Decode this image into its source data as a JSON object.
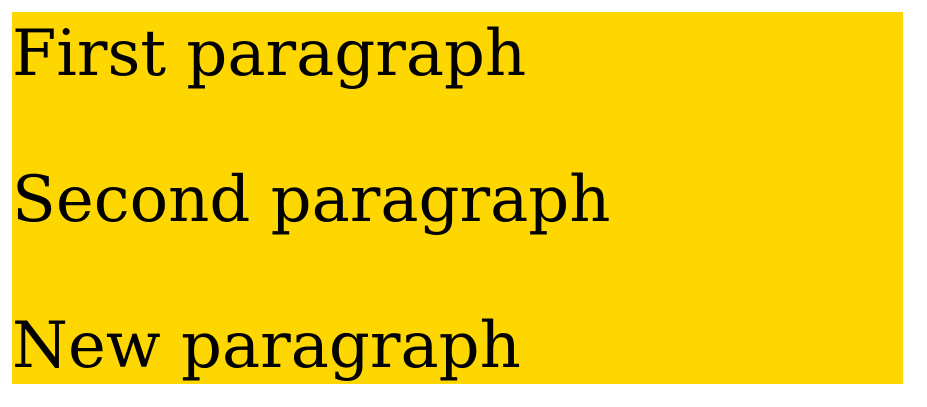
{
  "container": {
    "background_color": "#FFD700"
  },
  "paragraphs": [
    {
      "text": "First paragraph"
    },
    {
      "text": "Second paragraph"
    },
    {
      "text": "New paragraph"
    }
  ]
}
